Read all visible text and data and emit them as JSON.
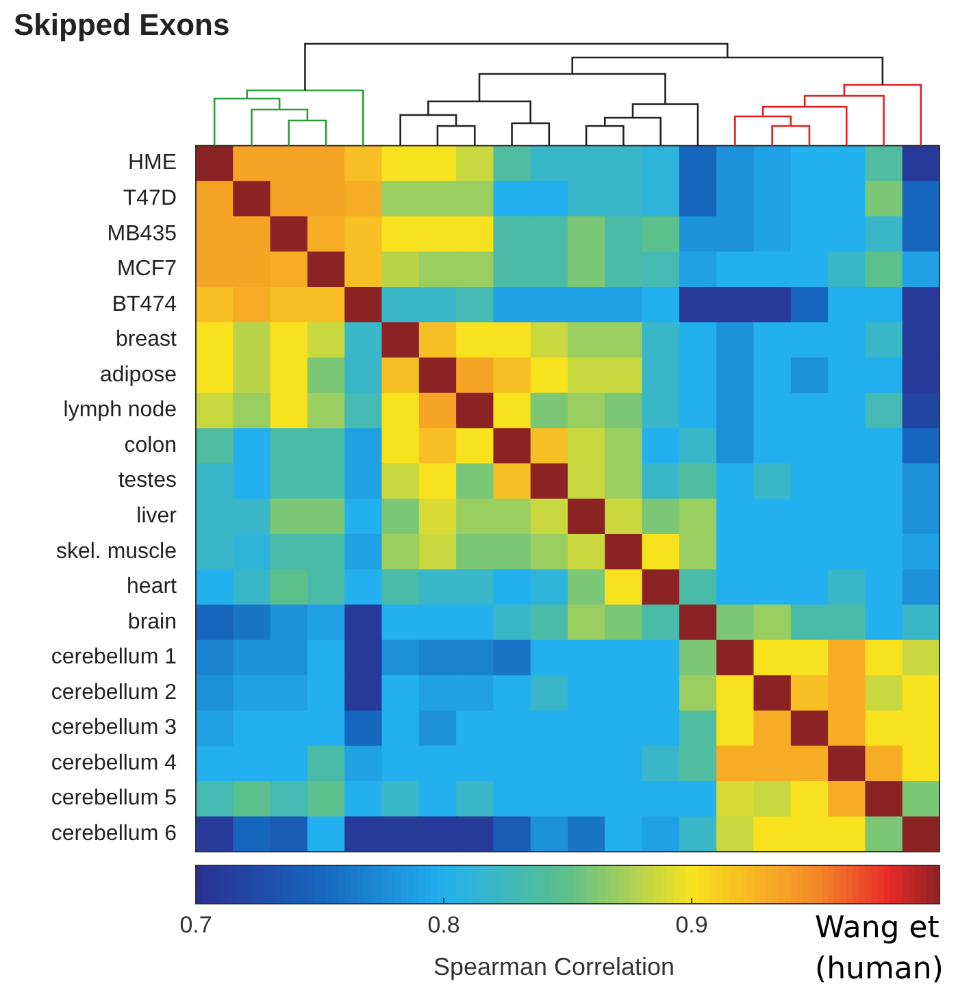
{
  "chart_data": {
    "type": "heatmap",
    "title": "Skipped Exons",
    "clabel": "Spearman Correlation",
    "annotations": [
      "Wang et",
      "(human)"
    ],
    "categories": [
      null,
      null,
      null,
      null,
      null,
      null,
      null,
      null,
      null,
      null,
      null,
      null,
      null,
      null,
      null,
      null,
      null,
      null,
      null,
      null
    ],
    "y_categories": [
      "HME",
      "T47D",
      "MB435",
      "MCF7",
      "BT474",
      "breast",
      "adipose",
      "lymph node",
      "colon",
      "testes",
      "liver",
      "skel. muscle",
      "heart",
      "brain",
      "cerebellum 1",
      "cerebellum 2",
      "cerebellum 3",
      "cerebellum 4",
      "cerebellum 5",
      "cerebellum 6"
    ],
    "clim": [
      0.7,
      1
    ],
    "cticks": [
      0.7,
      0.8,
      0.9
    ],
    "cells": [
      [
        1,
        0.935,
        0.935,
        0.935,
        0.92,
        0.9,
        0.9,
        0.885,
        0.84,
        0.82,
        0.82,
        0.82,
        0.81,
        0.75,
        0.78,
        0.79,
        0.8,
        0.8,
        0.84,
        0.71
      ],
      [
        0.935,
        1,
        0.935,
        0.935,
        0.93,
        0.87,
        0.87,
        0.87,
        0.8,
        0.8,
        0.82,
        0.82,
        0.81,
        0.75,
        0.78,
        0.79,
        0.8,
        0.8,
        0.86,
        0.75
      ],
      [
        0.935,
        0.935,
        1,
        0.93,
        0.92,
        0.9,
        0.9,
        0.9,
        0.835,
        0.835,
        0.86,
        0.835,
        0.85,
        0.78,
        0.78,
        0.79,
        0.8,
        0.8,
        0.82,
        0.75
      ],
      [
        0.935,
        0.935,
        0.93,
        1,
        0.92,
        0.88,
        0.87,
        0.87,
        0.835,
        0.835,
        0.86,
        0.835,
        0.83,
        0.79,
        0.8,
        0.8,
        0.8,
        0.82,
        0.85,
        0.79
      ],
      [
        0.92,
        0.93,
        0.92,
        0.92,
        1,
        0.82,
        0.82,
        0.83,
        0.79,
        0.79,
        0.79,
        0.79,
        0.8,
        0.71,
        0.71,
        0.71,
        0.75,
        0.8,
        0.8,
        0.71
      ],
      [
        0.9,
        0.88,
        0.9,
        0.885,
        0.82,
        1,
        0.92,
        0.9,
        0.9,
        0.885,
        0.87,
        0.87,
        0.82,
        0.8,
        0.78,
        0.8,
        0.8,
        0.8,
        0.82,
        0.71
      ],
      [
        0.9,
        0.88,
        0.9,
        0.86,
        0.82,
        0.92,
        1,
        0.935,
        0.92,
        0.9,
        0.885,
        0.885,
        0.82,
        0.8,
        0.78,
        0.8,
        0.78,
        0.8,
        0.8,
        0.71
      ],
      [
        0.885,
        0.87,
        0.9,
        0.87,
        0.83,
        0.9,
        0.935,
        1,
        0.9,
        0.86,
        0.87,
        0.86,
        0.82,
        0.8,
        0.78,
        0.8,
        0.8,
        0.8,
        0.83,
        0.72
      ],
      [
        0.84,
        0.8,
        0.835,
        0.835,
        0.79,
        0.9,
        0.92,
        0.9,
        1,
        0.92,
        0.885,
        0.87,
        0.8,
        0.82,
        0.78,
        0.8,
        0.8,
        0.8,
        0.8,
        0.75
      ],
      [
        0.82,
        0.8,
        0.835,
        0.835,
        0.79,
        0.885,
        0.9,
        0.86,
        0.92,
        1,
        0.885,
        0.87,
        0.82,
        0.84,
        0.8,
        0.82,
        0.8,
        0.8,
        0.8,
        0.78
      ],
      [
        0.82,
        0.82,
        0.86,
        0.86,
        0.8,
        0.86,
        0.89,
        0.87,
        0.87,
        0.885,
        1,
        0.885,
        0.86,
        0.87,
        0.8,
        0.8,
        0.8,
        0.8,
        0.8,
        0.78
      ],
      [
        0.82,
        0.81,
        0.835,
        0.835,
        0.79,
        0.87,
        0.885,
        0.86,
        0.86,
        0.87,
        0.885,
        1,
        0.9,
        0.87,
        0.8,
        0.8,
        0.8,
        0.8,
        0.8,
        0.79
      ],
      [
        0.8,
        0.82,
        0.85,
        0.835,
        0.8,
        0.835,
        0.82,
        0.82,
        0.8,
        0.81,
        0.86,
        0.9,
        1,
        0.835,
        0.8,
        0.8,
        0.8,
        0.82,
        0.8,
        0.78
      ],
      [
        0.75,
        0.76,
        0.78,
        0.79,
        0.71,
        0.8,
        0.8,
        0.8,
        0.82,
        0.835,
        0.87,
        0.86,
        0.835,
        1,
        0.86,
        0.87,
        0.835,
        0.835,
        0.8,
        0.82
      ],
      [
        0.77,
        0.78,
        0.78,
        0.8,
        0.71,
        0.78,
        0.77,
        0.77,
        0.76,
        0.8,
        0.8,
        0.8,
        0.8,
        0.86,
        1,
        0.9,
        0.9,
        0.93,
        0.9,
        0.885
      ],
      [
        0.78,
        0.79,
        0.79,
        0.8,
        0.71,
        0.8,
        0.79,
        0.79,
        0.8,
        0.82,
        0.8,
        0.8,
        0.8,
        0.87,
        0.9,
        1,
        0.92,
        0.93,
        0.885,
        0.9
      ],
      [
        0.79,
        0.8,
        0.8,
        0.8,
        0.75,
        0.8,
        0.78,
        0.8,
        0.8,
        0.8,
        0.8,
        0.8,
        0.8,
        0.84,
        0.9,
        0.93,
        1,
        0.93,
        0.9,
        0.9
      ],
      [
        0.8,
        0.8,
        0.8,
        0.835,
        0.79,
        0.8,
        0.8,
        0.8,
        0.8,
        0.8,
        0.8,
        0.8,
        0.82,
        0.84,
        0.93,
        0.93,
        0.93,
        1,
        0.93,
        0.9
      ],
      [
        0.83,
        0.85,
        0.83,
        0.85,
        0.8,
        0.82,
        0.8,
        0.82,
        0.8,
        0.8,
        0.8,
        0.8,
        0.8,
        0.8,
        0.89,
        0.885,
        0.9,
        0.93,
        1,
        0.86
      ],
      [
        0.71,
        0.75,
        0.74,
        0.8,
        0.71,
        0.71,
        0.71,
        0.71,
        0.74,
        0.78,
        0.76,
        0.8,
        0.79,
        0.82,
        0.885,
        0.9,
        0.9,
        0.9,
        0.86,
        1
      ]
    ]
  }
}
